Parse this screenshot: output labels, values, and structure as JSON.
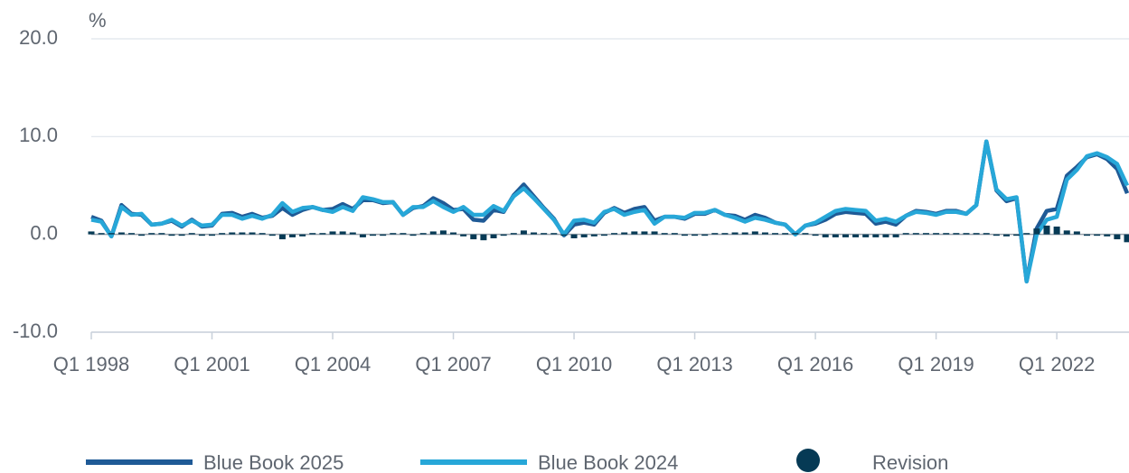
{
  "chart_data": {
    "type": "line",
    "y_label": "%",
    "categories": [
      "Q1 1998",
      null,
      null,
      null,
      null,
      null,
      null,
      null,
      null,
      null,
      null,
      null,
      "Q1 2001",
      null,
      null,
      null,
      null,
      null,
      null,
      null,
      null,
      null,
      null,
      null,
      "Q1 2004",
      null,
      null,
      null,
      null,
      null,
      null,
      null,
      null,
      null,
      null,
      null,
      "Q1 2007",
      null,
      null,
      null,
      null,
      null,
      null,
      null,
      null,
      null,
      null,
      null,
      "Q1 2010",
      null,
      null,
      null,
      null,
      null,
      null,
      null,
      null,
      null,
      null,
      null,
      "Q1 2013",
      null,
      null,
      null,
      null,
      null,
      null,
      null,
      null,
      null,
      null,
      null,
      "Q1 2016",
      null,
      null,
      null,
      null,
      null,
      null,
      null,
      null,
      null,
      null,
      null,
      "Q1 2019",
      null,
      null,
      null,
      null,
      null,
      null,
      null,
      null,
      null,
      null,
      null,
      "Q1 2022",
      null,
      null,
      null,
      null,
      null,
      null,
      null
    ],
    "series": [
      {
        "name": "Blue Book 2025",
        "color": "#1f5a96",
        "kind": "line",
        "values": [
          1.8,
          1.4,
          -0.2,
          3.0,
          2.1,
          2.0,
          1.0,
          1.1,
          1.4,
          0.8,
          1.5,
          0.8,
          0.9,
          2.1,
          2.2,
          1.8,
          2.1,
          1.7,
          1.9,
          2.7,
          2.0,
          2.5,
          2.8,
          2.5,
          2.6,
          3.1,
          2.6,
          3.5,
          3.5,
          3.2,
          3.3,
          2.0,
          2.7,
          2.9,
          3.7,
          3.2,
          2.5,
          2.6,
          1.5,
          1.4,
          2.5,
          2.3,
          4.0,
          5.1,
          3.9,
          2.7,
          1.6,
          -0.1,
          1.0,
          1.2,
          1.0,
          2.2,
          2.7,
          2.2,
          2.6,
          2.8,
          1.4,
          1.8,
          1.8,
          1.6,
          2.1,
          2.1,
          2.5,
          2.0,
          1.9,
          1.5,
          2.0,
          1.7,
          1.2,
          1.0,
          0.0,
          0.9,
          1.1,
          1.5,
          2.1,
          2.3,
          2.2,
          2.1,
          1.1,
          1.3,
          1.0,
          1.9,
          2.4,
          2.3,
          2.1,
          2.4,
          2.4,
          2.1,
          3.0,
          9.5,
          4.5,
          3.4,
          3.7,
          -4.8,
          0.6,
          2.4,
          2.6,
          6.0,
          6.9,
          7.9,
          8.2,
          7.7,
          6.7,
          4.2
        ]
      },
      {
        "name": "Blue Book 2024",
        "color": "#27a7d8",
        "kind": "line",
        "values": [
          1.5,
          1.3,
          -0.2,
          2.8,
          2.0,
          2.1,
          1.0,
          1.1,
          1.5,
          0.9,
          1.4,
          0.9,
          1.0,
          2.0,
          2.0,
          1.6,
          1.9,
          1.6,
          2.0,
          3.2,
          2.3,
          2.7,
          2.8,
          2.5,
          2.3,
          2.8,
          2.4,
          3.8,
          3.6,
          3.3,
          3.3,
          2.0,
          2.8,
          2.8,
          3.4,
          2.8,
          2.3,
          2.8,
          2.0,
          2.0,
          2.9,
          2.4,
          3.9,
          4.7,
          3.7,
          2.6,
          1.5,
          0.0,
          1.4,
          1.5,
          1.2,
          2.3,
          2.6,
          2.0,
          2.3,
          2.5,
          1.1,
          1.8,
          1.8,
          1.7,
          2.2,
          2.2,
          2.5,
          2.0,
          1.7,
          1.3,
          1.7,
          1.5,
          1.2,
          1.0,
          0.0,
          0.9,
          1.2,
          1.8,
          2.4,
          2.6,
          2.5,
          2.4,
          1.4,
          1.6,
          1.3,
          1.9,
          2.3,
          2.2,
          2.0,
          2.3,
          2.3,
          2.1,
          3.0,
          9.5,
          4.6,
          3.6,
          3.8,
          -4.8,
          0.0,
          1.5,
          1.8,
          5.6,
          6.6,
          8.0,
          8.3,
          7.9,
          7.2,
          5.0
        ]
      },
      {
        "name": "Revision",
        "color": "#063a55",
        "kind": "bar",
        "values": [
          0.3,
          0.1,
          0,
          0.2,
          0.1,
          -0.1,
          0,
          0,
          -0.1,
          -0.1,
          0.1,
          -0.1,
          -0.1,
          0.1,
          0.2,
          0.2,
          0.2,
          0.1,
          -0.1,
          -0.5,
          -0.3,
          -0.2,
          0,
          0,
          0.3,
          0.3,
          0.2,
          -0.3,
          -0.1,
          -0.1,
          0,
          0,
          -0.1,
          0.1,
          0.3,
          0.4,
          0.2,
          -0.2,
          -0.5,
          -0.6,
          -0.4,
          -0.1,
          0.1,
          0.4,
          0.2,
          0.1,
          0.1,
          -0.1,
          -0.4,
          -0.3,
          -0.2,
          -0.1,
          0.1,
          0.2,
          0.3,
          0.3,
          0.3,
          0,
          0,
          -0.1,
          -0.1,
          -0.1,
          0,
          0,
          0.2,
          0.2,
          0.3,
          0.2,
          0,
          0,
          0,
          0,
          -0.1,
          -0.3,
          -0.3,
          -0.3,
          -0.3,
          -0.3,
          -0.3,
          -0.3,
          -0.3,
          0,
          0.1,
          0.1,
          0.1,
          0.1,
          0.1,
          0,
          0,
          0,
          -0.1,
          -0.2,
          -0.1,
          0,
          0.6,
          0.9,
          0.8,
          0.4,
          0.3,
          -0.1,
          -0.1,
          -0.2,
          -0.5,
          -0.8
        ]
      }
    ],
    "ylim": [
      -10,
      20
    ],
    "yticks": [
      {
        "value": -10,
        "label": "-10.0"
      },
      {
        "value": 0,
        "label": "0.0"
      },
      {
        "value": 10,
        "label": "10.0"
      },
      {
        "value": 20,
        "label": "20.0"
      }
    ],
    "grid": true,
    "legend": "bottom"
  }
}
